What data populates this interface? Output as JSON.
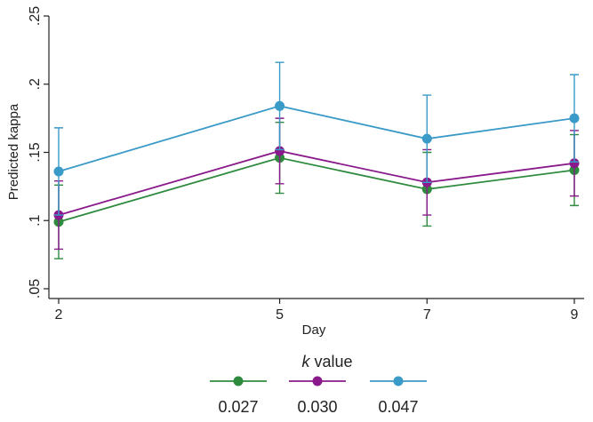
{
  "chart_data": {
    "type": "line",
    "title": "",
    "xlabel": "Day",
    "ylabel": "Predicted kappa",
    "x": [
      2,
      5,
      7,
      9
    ],
    "x_ticks": [
      "2",
      "5",
      "7",
      "9"
    ],
    "xlim": [
      2,
      9
    ],
    "ylim": [
      0.05,
      0.25
    ],
    "y_ticks": [
      0.05,
      0.1,
      0.15,
      0.2,
      0.25
    ],
    "y_tick_labels": [
      ".05",
      ".1",
      ".15",
      ".2",
      ".25"
    ],
    "grid": false,
    "legend": {
      "title_prefix": "k",
      "title_suffix": " value",
      "placement": "bottom"
    },
    "series": [
      {
        "name": "0.027",
        "color": "#2e8b3e",
        "values": [
          0.099,
          0.146,
          0.123,
          0.137
        ],
        "ci_low": [
          0.072,
          0.12,
          0.096,
          0.111
        ],
        "ci_high": [
          0.126,
          0.172,
          0.15,
          0.163
        ]
      },
      {
        "name": "0.030",
        "color": "#8a1a8c",
        "values": [
          0.104,
          0.151,
          0.128,
          0.142
        ],
        "ci_low": [
          0.079,
          0.127,
          0.104,
          0.118
        ],
        "ci_high": [
          0.129,
          0.175,
          0.152,
          0.166
        ]
      },
      {
        "name": "0.047",
        "color": "#3a9ac8",
        "values": [
          0.136,
          0.184,
          0.16,
          0.175
        ],
        "ci_low": [
          0.104,
          0.152,
          0.128,
          0.143
        ],
        "ci_high": [
          0.168,
          0.216,
          0.192,
          0.207
        ]
      }
    ]
  }
}
